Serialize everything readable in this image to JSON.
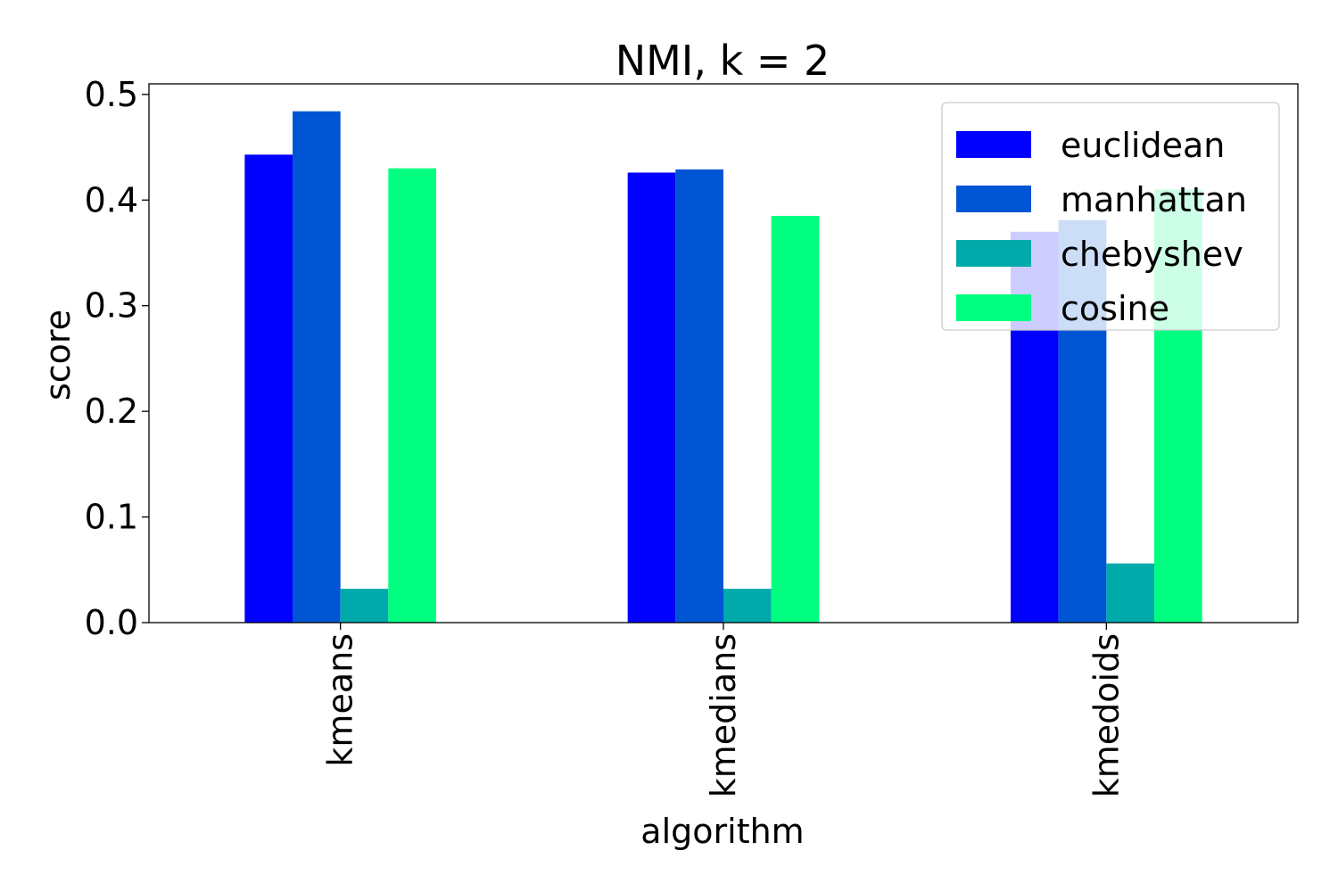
{
  "chart_data": {
    "type": "bar",
    "title": "NMI, k = 2",
    "xlabel": "algorithm",
    "ylabel": "score",
    "categories": [
      "kmeans",
      "kmedians",
      "kmedoids"
    ],
    "series": [
      {
        "name": "euclidean",
        "color": "#0000ff",
        "values": [
          0.443,
          0.426,
          0.37
        ]
      },
      {
        "name": "manhattan",
        "color": "#0055d4",
        "values": [
          0.484,
          0.429,
          0.381
        ]
      },
      {
        "name": "chebyshev",
        "color": "#00aaaa",
        "values": [
          0.032,
          0.032,
          0.056
        ]
      },
      {
        "name": "cosine",
        "color": "#00ff80",
        "values": [
          0.43,
          0.385,
          0.41
        ]
      }
    ],
    "ylim": [
      0.0,
      0.51
    ],
    "yticks": [
      0.0,
      0.1,
      0.2,
      0.3,
      0.4,
      0.5
    ],
    "ytick_labels": [
      "0.0",
      "0.1",
      "0.2",
      "0.3",
      "0.4",
      "0.5"
    ],
    "grid": false,
    "legend_position": "top-right"
  }
}
